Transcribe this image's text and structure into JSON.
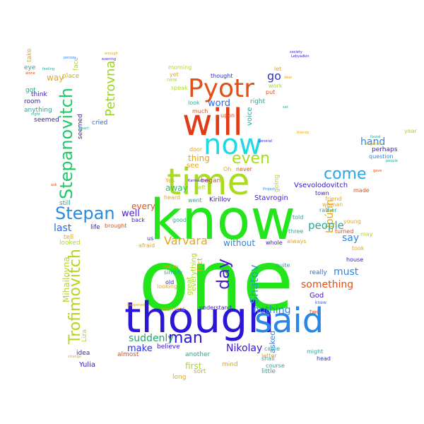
{
  "words": [
    {
      "text": "one",
      "color": "#22e61a",
      "vertical": false
    },
    {
      "text": "know",
      "color": "#22e61a",
      "vertical": false
    },
    {
      "text": "though",
      "color": "#2a16d6",
      "vertical": false
    },
    {
      "text": "time",
      "color": "#aadc1e",
      "vertical": false
    },
    {
      "text": "will",
      "color": "#e03a16",
      "vertical": false
    },
    {
      "text": "now",
      "color": "#20d8e6",
      "vertical": false
    },
    {
      "text": "said",
      "color": "#2a86e6",
      "vertical": false
    },
    {
      "text": "Pyotr",
      "color": "#e05018",
      "vertical": false
    },
    {
      "text": "Stepanovitch",
      "color": "#22c96a",
      "vertical": true
    },
    {
      "text": "Stepan",
      "color": "#2a8ae0",
      "vertical": false
    },
    {
      "text": "Trofimovitch",
      "color": "#b5d61e",
      "vertical": true
    },
    {
      "text": "even",
      "color": "#aadc1e",
      "vertical": false
    },
    {
      "text": "come",
      "color": "#2aa6e6",
      "vertical": false
    },
    {
      "text": "man",
      "color": "#2a16d6",
      "vertical": false
    },
    {
      "text": "day",
      "color": "#4a1ad6",
      "vertical": true
    },
    {
      "text": "Varvara",
      "color": "#e6a618",
      "vertical": false
    },
    {
      "text": "people",
      "color": "#22aa9a",
      "vertical": false
    },
    {
      "text": "Petrovna",
      "color": "#9ad61e",
      "vertical": true
    },
    {
      "text": "nothing",
      "color": "#2a8ae0",
      "vertical": false
    },
    {
      "text": "suddenly",
      "color": "#22a66a",
      "vertical": false
    },
    {
      "text": "something",
      "color": "#e05018",
      "vertical": false
    },
    {
      "text": "Shatov",
      "color": "#22a6b0",
      "vertical": true
    },
    {
      "text": "must",
      "color": "#2a86e6",
      "vertical": false
    },
    {
      "text": "Nikolay",
      "color": "#3a16c6",
      "vertical": false
    },
    {
      "text": "last",
      "color": "#2a6ae0",
      "vertical": false
    },
    {
      "text": "go",
      "color": "#2a32d6",
      "vertical": false
    },
    {
      "text": "hand",
      "color": "#2a86e6",
      "vertical": false
    },
    {
      "text": "say",
      "color": "#2a86e6",
      "vertical": false
    },
    {
      "text": "word",
      "color": "#2a6ae0",
      "vertical": false
    },
    {
      "text": "make",
      "color": "#2a32d6",
      "vertical": false
    },
    {
      "text": "well",
      "color": "#4a1ad6",
      "vertical": false
    },
    {
      "text": "away",
      "color": "#22c96a",
      "vertical": false
    },
    {
      "text": "thing",
      "color": "#e6a618",
      "vertical": false
    },
    {
      "text": "first",
      "color": "#aadc1e",
      "vertical": false
    },
    {
      "text": "without",
      "color": "#2a86e6",
      "vertical": false
    },
    {
      "text": "Vsevolodovitch",
      "color": "#3a16c6",
      "vertical": false
    },
    {
      "text": "Stavrogin",
      "color": "#4a1ad6",
      "vertical": false
    },
    {
      "text": "every",
      "color": "#e05018",
      "vertical": false
    },
    {
      "text": "way",
      "color": "#e6a618",
      "vertical": false
    },
    {
      "text": "see",
      "color": "#e6a618",
      "vertical": true
    },
    {
      "text": "Lipútin",
      "color": "#e6a618",
      "vertical": false
    },
    {
      "text": "Kirillov",
      "color": "#3a16c6",
      "vertical": false
    },
    {
      "text": "God",
      "color": "#3a16c6",
      "vertical": false
    },
    {
      "text": "Yulia",
      "color": "#3a16c6",
      "vertical": false
    },
    {
      "text": "Mihailovna",
      "color": "#b5d61e",
      "vertical": true
    },
    {
      "text": "perhaps",
      "color": "#3a16c6",
      "vertical": false
    },
    {
      "text": "really",
      "color": "#2a6ae0",
      "vertical": false
    },
    {
      "text": "asked",
      "color": "#2a86e6",
      "vertical": true
    },
    {
      "text": "began",
      "color": "#e05018",
      "vertical": false
    },
    {
      "text": "thought",
      "color": "#2a32d6",
      "vertical": false
    },
    {
      "text": "right",
      "color": "#22aa9a",
      "vertical": false
    },
    {
      "text": "let",
      "color": "#e6a618",
      "vertical": false
    },
    {
      "text": "put",
      "color": "#e05018",
      "vertical": false
    },
    {
      "text": "place",
      "color": "#e6a618",
      "vertical": false
    },
    {
      "text": "cried",
      "color": "#2a6ae0",
      "vertical": false
    },
    {
      "text": "still",
      "color": "#22aa9a",
      "vertical": false
    },
    {
      "text": "tell",
      "color": "#e6a618",
      "vertical": false
    },
    {
      "text": "life",
      "color": "#3a16c6",
      "vertical": false
    },
    {
      "text": "looked",
      "color": "#aadc1e",
      "vertical": false
    },
    {
      "text": "idea",
      "color": "#3a16c6",
      "vertical": false
    },
    {
      "text": "almost",
      "color": "#e05018",
      "vertical": false
    },
    {
      "text": "believe",
      "color": "#3a16c6",
      "vertical": false
    },
    {
      "text": "another",
      "color": "#22aa9a",
      "vertical": false
    },
    {
      "text": "sort",
      "color": "#e6a618",
      "vertical": false
    },
    {
      "text": "long",
      "color": "#e6a618",
      "vertical": false
    },
    {
      "text": "mind",
      "color": "#e6a618",
      "vertical": false
    },
    {
      "text": "shall",
      "color": "#22aa9a",
      "vertical": false
    },
    {
      "text": "course",
      "color": "#22aa9a",
      "vertical": false
    },
    {
      "text": "letter",
      "color": "#e6a618",
      "vertical": false
    },
    {
      "text": "little",
      "color": "#22aa9a",
      "vertical": false
    },
    {
      "text": "might",
      "color": "#22aa9a",
      "vertical": false
    },
    {
      "text": "head",
      "color": "#2a32d6",
      "vertical": false
    },
    {
      "text": "two",
      "color": "#e05018",
      "vertical": false
    },
    {
      "text": "quite",
      "color": "#22aa9a",
      "vertical": false
    },
    {
      "text": "knew",
      "color": "#2a6ae0",
      "vertical": false
    },
    {
      "text": "young",
      "color": "#e6a618",
      "vertical": false
    },
    {
      "text": "house",
      "color": "#3a16c6",
      "vertical": false
    },
    {
      "text": "took",
      "color": "#e6a618",
      "vertical": false
    },
    {
      "text": "may",
      "color": "#aadc1e",
      "vertical": false
    },
    {
      "text": "question",
      "color": "#2a86e6",
      "vertical": false
    },
    {
      "text": "year",
      "color": "#aadc1e",
      "vertical": false
    },
    {
      "text": "made",
      "color": "#e05018",
      "vertical": false
    },
    {
      "text": "town",
      "color": "#3a16c6",
      "vertical": false
    },
    {
      "text": "friend",
      "color": "#e6a618",
      "vertical": false
    },
    {
      "text": "woman",
      "color": "#e6a618",
      "vertical": false
    },
    {
      "text": "rather",
      "color": "#22aa9a",
      "vertical": false
    },
    {
      "text": "turned",
      "color": "#e05018",
      "vertical": false
    },
    {
      "text": "always",
      "color": "#e6a618",
      "vertical": false
    },
    {
      "text": "whole",
      "color": "#3a16c6",
      "vertical": false
    },
    {
      "text": "three",
      "color": "#22aa9a",
      "vertical": false
    },
    {
      "text": "told",
      "color": "#22aa9a",
      "vertical": false
    },
    {
      "text": "went",
      "color": "#22aa9a",
      "vertical": false
    },
    {
      "text": "heard",
      "color": "#e6a618",
      "vertical": false
    },
    {
      "text": "good",
      "color": "#22aa9a",
      "vertical": false
    },
    {
      "text": "back",
      "color": "#3a16c6",
      "vertical": false
    },
    {
      "text": "brought",
      "color": "#e05018",
      "vertical": false
    },
    {
      "text": "us",
      "color": "#3a16c6",
      "vertical": false
    },
    {
      "text": "afraid",
      "color": "#e6a618",
      "vertical": false
    },
    {
      "text": "mean",
      "color": "#e6a618",
      "vertical": false
    },
    {
      "text": "simply",
      "color": "#22aa9a",
      "vertical": false
    },
    {
      "text": "old",
      "color": "#3a16c6",
      "vertical": false
    },
    {
      "text": "looking",
      "color": "#e6a618",
      "vertical": false
    },
    {
      "text": "moment",
      "color": "#e6a618",
      "vertical": false
    },
    {
      "text": "great",
      "color": "#aadc1e",
      "vertical": true
    },
    {
      "text": "everything",
      "color": "#aadc1e",
      "vertical": true
    },
    {
      "text": "fact",
      "color": "#e6a618",
      "vertical": true
    },
    {
      "text": "understand",
      "color": "#3a16c6",
      "vertical": false
    },
    {
      "text": "came",
      "color": "#22aa9a",
      "vertical": false
    },
    {
      "text": "never",
      "color": "#e05018",
      "vertical": false
    },
    {
      "text": "Oh",
      "color": "#e6a618",
      "vertical": false
    },
    {
      "text": "door",
      "color": "#e6a618",
      "vertical": false
    },
    {
      "text": "left",
      "color": "#aadc1e",
      "vertical": false
    },
    {
      "text": "Yes",
      "color": "#e6a618",
      "vertical": false
    },
    {
      "text": "look",
      "color": "#22aa9a",
      "vertical": false
    },
    {
      "text": "much",
      "color": "#e05018",
      "vertical": false
    },
    {
      "text": "upon",
      "color": "#e05018",
      "vertical": false
    },
    {
      "text": "give",
      "color": "#e6a618",
      "vertical": true
    },
    {
      "text": "voice",
      "color": "#22aa9a",
      "vertical": false
    },
    {
      "text": "work",
      "color": "#aadc1e",
      "vertical": false
    },
    {
      "text": "yet",
      "color": "#e6a618",
      "vertical": false
    },
    {
      "text": "speak",
      "color": "#aadc1e",
      "vertical": false
    },
    {
      "text": "morning",
      "color": "#aadc1e",
      "vertical": false
    },
    {
      "text": "new",
      "color": "#aadc1e",
      "vertical": false
    },
    {
      "text": "eye",
      "color": "#22aa9a",
      "vertical": false
    },
    {
      "text": "got",
      "color": "#22aa9a",
      "vertical": false
    },
    {
      "text": "think",
      "color": "#3a16c6",
      "vertical": false
    },
    {
      "text": "room",
      "color": "#3a16c6",
      "vertical": false
    },
    {
      "text": "anything",
      "color": "#22aa9a",
      "vertical": false
    },
    {
      "text": "seemed",
      "color": "#3a16c6",
      "vertical": true
    },
    {
      "text": "face",
      "color": "#aadc1e",
      "vertical": true
    },
    {
      "text": "take",
      "color": "#e6a618",
      "vertical": true
    },
    {
      "text": "Liza",
      "color": "#aadc1e",
      "vertical": true
    },
    {
      "text": "Project",
      "color": "#2a86e6",
      "vertical": false
    },
    {
      "text": "going",
      "color": "#aadc1e",
      "vertical": true
    },
    {
      "text": "society",
      "color": "#3a16c6",
      "vertical": false
    },
    {
      "text": "Lebyadkin",
      "color": "#3a16c6",
      "vertical": false
    },
    {
      "text": "alone",
      "color": "#e05018",
      "vertical": false
    },
    {
      "text": "person",
      "color": "#2a86e6",
      "vertical": false
    },
    {
      "text": "enough",
      "color": "#e6a618",
      "vertical": false
    },
    {
      "text": "evening",
      "color": "#3a16c6",
      "vertical": false
    },
    {
      "text": "heart",
      "color": "#22aa9a",
      "vertical": false
    },
    {
      "text": "night",
      "color": "#22aa9a",
      "vertical": false
    },
    {
      "text": "feeling",
      "color": "#22aa9a",
      "vertical": false
    },
    {
      "text": "strange",
      "color": "#e6a618",
      "vertical": false
    },
    {
      "text": "ask",
      "color": "#e05018",
      "vertical": false
    },
    {
      "text": "found",
      "color": "#22aa9a",
      "vertical": false
    },
    {
      "text": "together",
      "color": "#e6a618",
      "vertical": false
    },
    {
      "text": "general",
      "color": "#3a16c6",
      "vertical": false
    },
    {
      "text": "dear",
      "color": "#e6a618",
      "vertical": false
    },
    {
      "text": "Karmazinov",
      "color": "#3a16c6",
      "vertical": false
    },
    {
      "text": "happened",
      "color": "#e6a618",
      "vertical": false
    },
    {
      "text": "sat",
      "color": "#22aa9a",
      "vertical": false
    },
    {
      "text": "friends",
      "color": "#e6a618",
      "vertical": false
    },
    {
      "text": "people",
      "color": "#22aa9a",
      "vertical": false
    },
    {
      "text": "gave",
      "color": "#e05018",
      "vertical": false
    }
  ]
}
